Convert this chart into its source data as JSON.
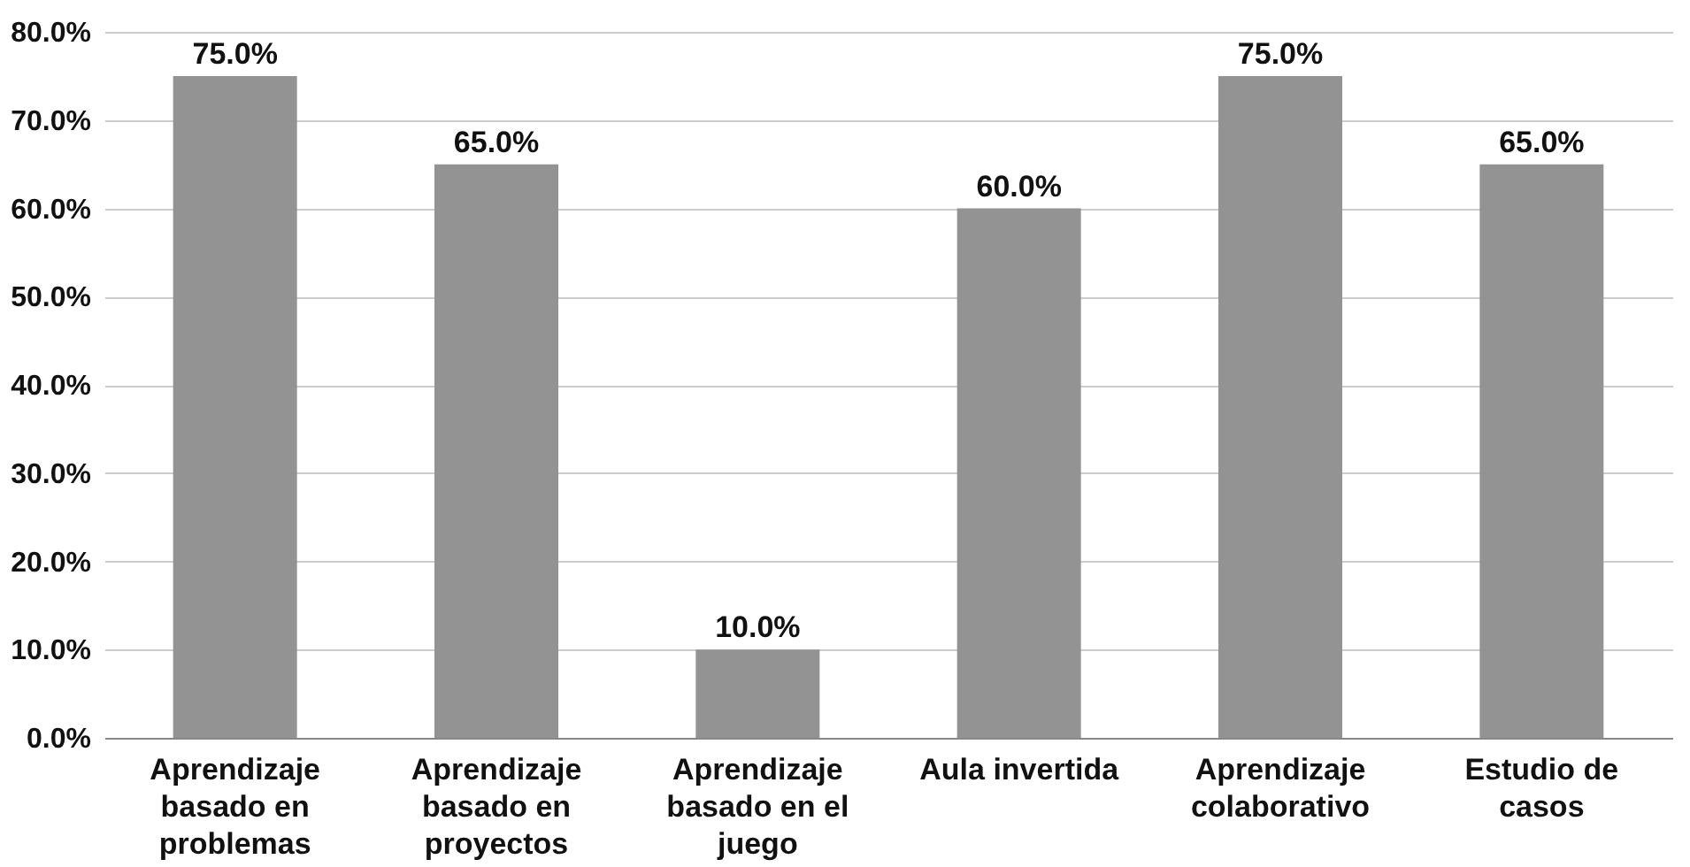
{
  "chart_data": {
    "type": "bar",
    "categories": [
      "Aprendizaje basado en problemas",
      "Aprendizaje basado en proyectos",
      "Aprendizaje basado en el juego",
      "Aula invertida",
      "Aprendizaje colaborativo",
      "Estudio de casos"
    ],
    "values": [
      75,
      65,
      10,
      60,
      75,
      65
    ],
    "value_labels": [
      "75.0%",
      "65.0%",
      "10.0%",
      "60.0%",
      "75.0%",
      "65.0%"
    ],
    "color": "#939393",
    "ylim": [
      0,
      80
    ],
    "yticks": [
      {
        "value": 0,
        "label": "0.0%"
      },
      {
        "value": 10,
        "label": "10.0%"
      },
      {
        "value": 20,
        "label": "20.0%"
      },
      {
        "value": 30,
        "label": "30.0%"
      },
      {
        "value": 40,
        "label": "40.0%"
      },
      {
        "value": 50,
        "label": "50.0%"
      },
      {
        "value": 60,
        "label": "60.0%"
      },
      {
        "value": 70,
        "label": "70.0%"
      },
      {
        "value": 80,
        "label": "80.0%"
      }
    ],
    "grid": "y"
  }
}
